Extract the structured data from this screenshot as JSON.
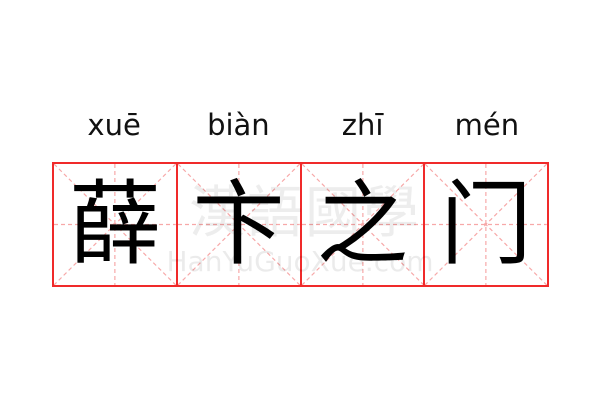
{
  "pinyin": [
    "xuē",
    "biàn",
    "zhī",
    "mén"
  ],
  "characters": [
    "薛",
    "卞",
    "之",
    "门"
  ],
  "watermark": {
    "chars": "漢語國學",
    "text": "HanYuGuoXue.com"
  },
  "colors": {
    "grid_border": "#f02a2a",
    "guide_lines": "#f7a8a8"
  }
}
